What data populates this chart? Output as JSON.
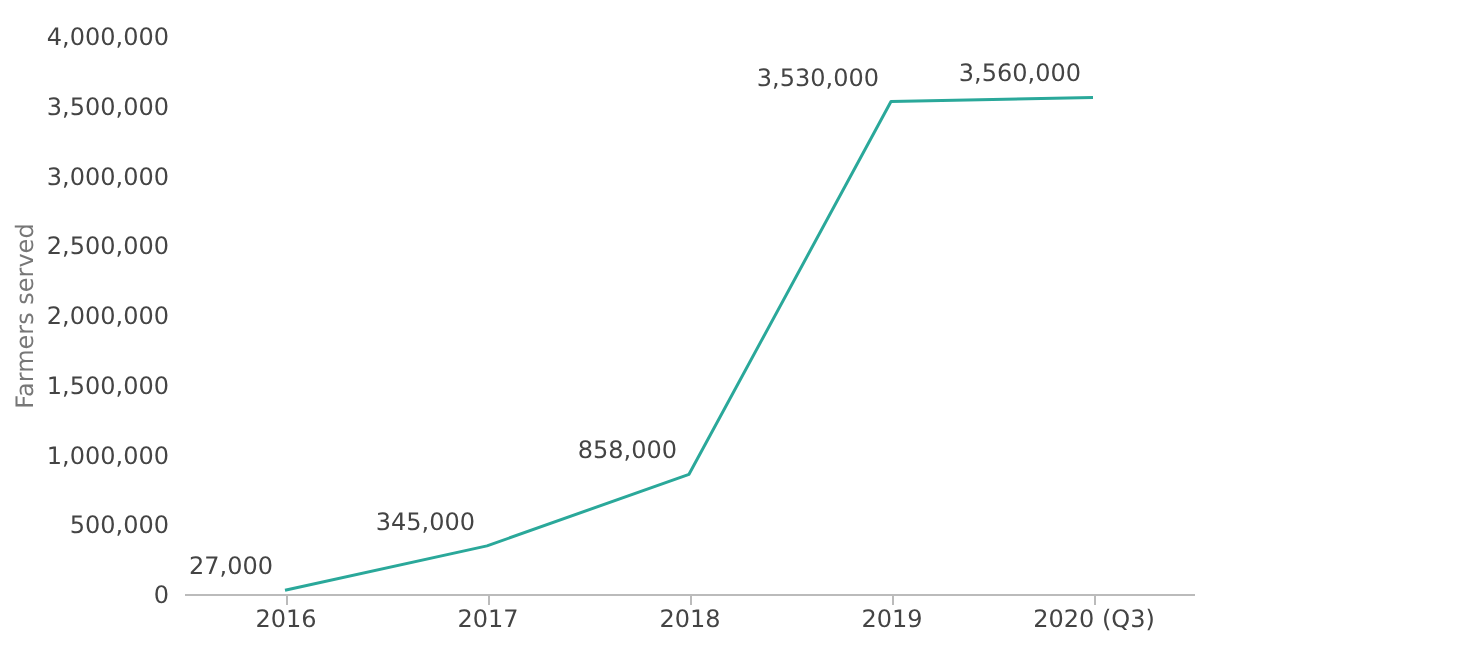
{
  "chart_data": {
    "type": "line",
    "ylabel": "Farmers served",
    "categories": [
      "2016",
      "2017",
      "2018",
      "2019",
      "2020 (Q3)"
    ],
    "series": [
      {
        "color": "#2aa89a",
        "values": [
          27000,
          345000,
          858000,
          3530000,
          3560000
        ],
        "value_labels": [
          "27,000",
          "345,000",
          "858,000",
          "3,530,000",
          "3,560,000"
        ]
      }
    ],
    "ylim": [
      0,
      4000000
    ],
    "yticks": [
      0,
      {
        "value": 500000,
        "label": "500,000"
      },
      {
        "value": 1000000,
        "label": "1,000,000"
      },
      {
        "value": 1500000,
        "label": "1,500,000"
      },
      {
        "value": 2000000,
        "label": "2,000,000"
      },
      {
        "value": 2500000,
        "label": "2,500,000"
      },
      {
        "value": 3000000,
        "label": "3,000,000"
      },
      {
        "value": 3500000,
        "label": "3,500,000"
      },
      {
        "value": 4000000,
        "label": "4,000,000"
      }
    ],
    "grid": false,
    "legend": false,
    "marker": "none",
    "line_style": "solid"
  }
}
